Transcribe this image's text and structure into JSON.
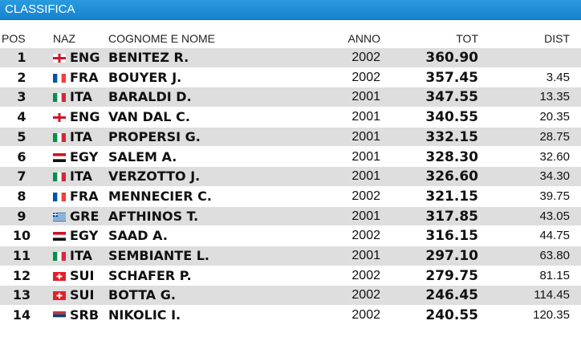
{
  "header": {
    "title": "CLASSIFICA"
  },
  "table": {
    "columns": [
      "POS",
      "NAZ",
      "COGNOME E NOME",
      "ANNO",
      "TOT",
      "DIST"
    ],
    "rows": [
      {
        "pos": 1,
        "naz": "ENG",
        "nome": "BENITEZ R.",
        "anno": 2002,
        "tot": "360.90"
      },
      {
        "pos": 2,
        "naz": "FRA",
        "nome": "BOUYER J.",
        "anno": 2002,
        "tot": "357.45",
        "dist": "3.45"
      },
      {
        "pos": 3,
        "naz": "ITA",
        "nome": "BARALDI D.",
        "anno": 2001,
        "tot": "347.55",
        "dist": "13.35"
      },
      {
        "pos": 4,
        "naz": "ENG",
        "nome": "VAN DAL C.",
        "anno": 2001,
        "tot": "340.55",
        "dist": "20.35"
      },
      {
        "pos": 5,
        "naz": "ITA",
        "nome": "PROPERSI G.",
        "anno": 2001,
        "tot": "332.15",
        "dist": "28.75"
      },
      {
        "pos": 6,
        "naz": "EGY",
        "nome": "SALEM A.",
        "anno": 2001,
        "tot": "328.30",
        "dist": "32.60"
      },
      {
        "pos": 7,
        "naz": "ITA",
        "nome": "VERZOTTO J.",
        "anno": 2001,
        "tot": "326.60",
        "dist": "34.30"
      },
      {
        "pos": 8,
        "naz": "FRA",
        "nome": "MENNECIER C.",
        "anno": 2002,
        "tot": "321.15",
        "dist": "39.75"
      },
      {
        "pos": 9,
        "naz": "GRE",
        "nome": "AFTHINOS T.",
        "anno": 2001,
        "tot": "317.85",
        "dist": "43.05"
      },
      {
        "pos": 10,
        "naz": "EGY",
        "nome": "SAAD A.",
        "anno": 2002,
        "tot": "316.15",
        "dist": "44.75"
      },
      {
        "pos": 11,
        "naz": "ITA",
        "nome": "SEMBIANTE L.",
        "anno": 2001,
        "tot": "297.10",
        "dist": "63.80"
      },
      {
        "pos": 12,
        "naz": "SUI",
        "nome": "SCHAFER P.",
        "anno": 2002,
        "tot": "279.75",
        "dist": "81.15"
      },
      {
        "pos": 13,
        "naz": "SUI",
        "nome": "BOTTA G.",
        "anno": 2002,
        "tot": "246.45",
        "dist": "114.45"
      },
      {
        "pos": 14,
        "naz": "SRB",
        "nome": "NIKOLIC I.",
        "anno": 2002,
        "tot": "240.55",
        "dist": "120.35"
      }
    ]
  }
}
